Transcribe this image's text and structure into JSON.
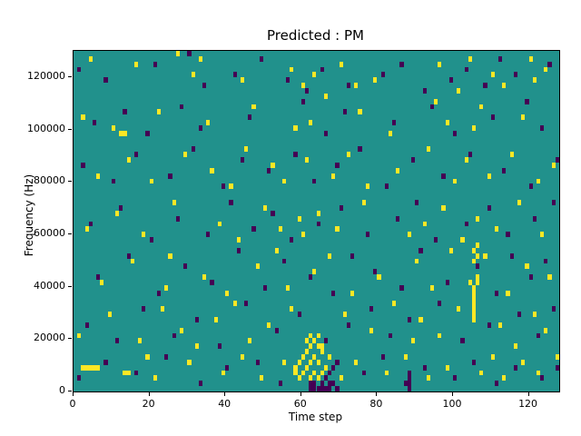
{
  "figure": {
    "title": "Predicted : PM",
    "xlabel": "Time step",
    "ylabel": "Frequency (Hz)"
  },
  "chart_data": {
    "type": "heatmap",
    "title": "Predicted : PM",
    "xlabel": "Time step",
    "ylabel": "Frequency (Hz)",
    "xlim": [
      0,
      128
    ],
    "ylim": [
      0,
      130000
    ],
    "x_ticks": [
      0,
      20,
      40,
      60,
      80,
      100,
      120
    ],
    "y_ticks": [
      0,
      20000,
      40000,
      60000,
      80000,
      100000,
      120000
    ],
    "grid": {
      "nx": 128,
      "ny": 64,
      "cell_height_hz": 2031
    },
    "colors": {
      "background": "#21918c",
      "high": "#fde725",
      "low": "#440154"
    },
    "legend_position": "none",
    "description": "Sparse spectrogram-style classification map: mostly mid (teal) cells with scattered high (yellow) and low (dark purple) cells. Cells given as [time_step, frequency_bin] with 64 bins spanning 0-130000 Hz.",
    "cells": {
      "high": [
        [
          4,
          62
        ],
        [
          16,
          61
        ],
        [
          27,
          63
        ],
        [
          31,
          59
        ],
        [
          33,
          62
        ],
        [
          44,
          58
        ],
        [
          57,
          60
        ],
        [
          60,
          57
        ],
        [
          63,
          59
        ],
        [
          66,
          55
        ],
        [
          70,
          61
        ],
        [
          74,
          57
        ],
        [
          79,
          58
        ],
        [
          96,
          61
        ],
        [
          101,
          56
        ],
        [
          104,
          62
        ],
        [
          110,
          59
        ],
        [
          113,
          57
        ],
        [
          120,
          62
        ],
        [
          121,
          58
        ],
        [
          124,
          60
        ],
        [
          2,
          51
        ],
        [
          10,
          49
        ],
        [
          12,
          48
        ],
        [
          13,
          48
        ],
        [
          22,
          52
        ],
        [
          35,
          50
        ],
        [
          47,
          53
        ],
        [
          58,
          49
        ],
        [
          62,
          50
        ],
        [
          75,
          52
        ],
        [
          83,
          48
        ],
        [
          95,
          54
        ],
        [
          98,
          50
        ],
        [
          105,
          49
        ],
        [
          107,
          53
        ],
        [
          118,
          51
        ],
        [
          6,
          40
        ],
        [
          14,
          43
        ],
        [
          20,
          39
        ],
        [
          29,
          44
        ],
        [
          36,
          41
        ],
        [
          41,
          38
        ],
        [
          45,
          45
        ],
        [
          52,
          42
        ],
        [
          55,
          39
        ],
        [
          61,
          43
        ],
        [
          68,
          40
        ],
        [
          72,
          44
        ],
        [
          77,
          38
        ],
        [
          85,
          41
        ],
        [
          93,
          45
        ],
        [
          100,
          39
        ],
        [
          103,
          43
        ],
        [
          109,
          40
        ],
        [
          115,
          44
        ],
        [
          122,
          39
        ],
        [
          126,
          42
        ],
        [
          3,
          30
        ],
        [
          11,
          33
        ],
        [
          18,
          29
        ],
        [
          26,
          35
        ],
        [
          38,
          31
        ],
        [
          43,
          28
        ],
        [
          50,
          34
        ],
        [
          54,
          30
        ],
        [
          59,
          32
        ],
        [
          60,
          29
        ],
        [
          64,
          33
        ],
        [
          69,
          30
        ],
        [
          76,
          35
        ],
        [
          88,
          29
        ],
        [
          92,
          31
        ],
        [
          97,
          34
        ],
        [
          102,
          28
        ],
        [
          106,
          32
        ],
        [
          111,
          30
        ],
        [
          117,
          35
        ],
        [
          123,
          29
        ],
        [
          7,
          20
        ],
        [
          15,
          24
        ],
        [
          24,
          19
        ],
        [
          25,
          25
        ],
        [
          34,
          21
        ],
        [
          40,
          18
        ],
        [
          48,
          23
        ],
        [
          53,
          26
        ],
        [
          56,
          19
        ],
        [
          63,
          22
        ],
        [
          67,
          25
        ],
        [
          73,
          18
        ],
        [
          80,
          21
        ],
        [
          90,
          24
        ],
        [
          94,
          19
        ],
        [
          99,
          26
        ],
        [
          104,
          20
        ],
        [
          108,
          25
        ],
        [
          114,
          18
        ],
        [
          119,
          23
        ],
        [
          125,
          21
        ],
        [
          105,
          13
        ],
        [
          105,
          14
        ],
        [
          105,
          15
        ],
        [
          105,
          16
        ],
        [
          105,
          17
        ],
        [
          105,
          18
        ],
        [
          105,
          19
        ],
        [
          106,
          20
        ],
        [
          106,
          21
        ],
        [
          105,
          24
        ],
        [
          106,
          25
        ],
        [
          105,
          26
        ],
        [
          106,
          27
        ],
        [
          1,
          10
        ],
        [
          9,
          14
        ],
        [
          17,
          9
        ],
        [
          23,
          15
        ],
        [
          28,
          11
        ],
        [
          32,
          8
        ],
        [
          37,
          13
        ],
        [
          42,
          16
        ],
        [
          46,
          9
        ],
        [
          51,
          12
        ],
        [
          57,
          15
        ],
        [
          62,
          10
        ],
        [
          65,
          8
        ],
        [
          71,
          14
        ],
        [
          78,
          11
        ],
        [
          84,
          16
        ],
        [
          89,
          9
        ],
        [
          91,
          13
        ],
        [
          96,
          10
        ],
        [
          101,
          15
        ],
        [
          112,
          12
        ],
        [
          116,
          8
        ],
        [
          121,
          14
        ],
        [
          124,
          11
        ],
        [
          2,
          4
        ],
        [
          3,
          4
        ],
        [
          4,
          4
        ],
        [
          5,
          4
        ],
        [
          6,
          4
        ],
        [
          13,
          3
        ],
        [
          14,
          3
        ],
        [
          19,
          6
        ],
        [
          21,
          2
        ],
        [
          30,
          5
        ],
        [
          39,
          3
        ],
        [
          44,
          6
        ],
        [
          49,
          2
        ],
        [
          55,
          5
        ],
        [
          58,
          3
        ],
        [
          58,
          4
        ],
        [
          59,
          2
        ],
        [
          59,
          5
        ],
        [
          60,
          3
        ],
        [
          60,
          6
        ],
        [
          61,
          4
        ],
        [
          61,
          7
        ],
        [
          61,
          9
        ],
        [
          62,
          2
        ],
        [
          62,
          5
        ],
        [
          62,
          8
        ],
        [
          63,
          3
        ],
        [
          63,
          6
        ],
        [
          63,
          9
        ],
        [
          64,
          2
        ],
        [
          64,
          5
        ],
        [
          64,
          8
        ],
        [
          64,
          10
        ],
        [
          65,
          3
        ],
        [
          65,
          7
        ],
        [
          66,
          4
        ],
        [
          66,
          9
        ],
        [
          67,
          6
        ],
        [
          70,
          2
        ],
        [
          74,
          5
        ],
        [
          82,
          3
        ],
        [
          87,
          6
        ],
        [
          93,
          2
        ],
        [
          98,
          4
        ],
        [
          107,
          3
        ],
        [
          110,
          6
        ],
        [
          113,
          2
        ],
        [
          118,
          5
        ],
        [
          122,
          3
        ],
        [
          127,
          6
        ]
      ],
      "low": [
        [
          1,
          60
        ],
        [
          8,
          58
        ],
        [
          21,
          61
        ],
        [
          30,
          63
        ],
        [
          34,
          57
        ],
        [
          42,
          59
        ],
        [
          49,
          62
        ],
        [
          56,
          58
        ],
        [
          61,
          56
        ],
        [
          65,
          60
        ],
        [
          72,
          57
        ],
        [
          81,
          59
        ],
        [
          86,
          61
        ],
        [
          92,
          56
        ],
        [
          99,
          58
        ],
        [
          103,
          60
        ],
        [
          108,
          57
        ],
        [
          112,
          62
        ],
        [
          116,
          59
        ],
        [
          125,
          61
        ],
        [
          5,
          50
        ],
        [
          13,
          52
        ],
        [
          19,
          48
        ],
        [
          28,
          53
        ],
        [
          33,
          49
        ],
        [
          46,
          51
        ],
        [
          60,
          54
        ],
        [
          66,
          48
        ],
        [
          71,
          52
        ],
        [
          84,
          50
        ],
        [
          94,
          53
        ],
        [
          100,
          48
        ],
        [
          110,
          51
        ],
        [
          119,
          54
        ],
        [
          123,
          49
        ],
        [
          2,
          42
        ],
        [
          10,
          39
        ],
        [
          16,
          44
        ],
        [
          25,
          40
        ],
        [
          31,
          45
        ],
        [
          39,
          38
        ],
        [
          44,
          43
        ],
        [
          51,
          41
        ],
        [
          58,
          44
        ],
        [
          63,
          39
        ],
        [
          69,
          42
        ],
        [
          75,
          45
        ],
        [
          82,
          38
        ],
        [
          89,
          43
        ],
        [
          97,
          40
        ],
        [
          104,
          44
        ],
        [
          113,
          41
        ],
        [
          120,
          38
        ],
        [
          127,
          43
        ],
        [
          4,
          31
        ],
        [
          12,
          34
        ],
        [
          20,
          28
        ],
        [
          27,
          32
        ],
        [
          35,
          29
        ],
        [
          41,
          35
        ],
        [
          47,
          30
        ],
        [
          52,
          33
        ],
        [
          57,
          28
        ],
        [
          64,
          31
        ],
        [
          70,
          34
        ],
        [
          77,
          29
        ],
        [
          85,
          32
        ],
        [
          90,
          35
        ],
        [
          95,
          28
        ],
        [
          103,
          31
        ],
        [
          109,
          34
        ],
        [
          114,
          29
        ],
        [
          121,
          32
        ],
        [
          126,
          35
        ],
        [
          6,
          21
        ],
        [
          14,
          25
        ],
        [
          22,
          18
        ],
        [
          29,
          23
        ],
        [
          36,
          20
        ],
        [
          43,
          26
        ],
        [
          50,
          19
        ],
        [
          55,
          24
        ],
        [
          62,
          21
        ],
        [
          68,
          18
        ],
        [
          73,
          25
        ],
        [
          79,
          22
        ],
        [
          86,
          19
        ],
        [
          91,
          26
        ],
        [
          98,
          20
        ],
        [
          106,
          23
        ],
        [
          111,
          18
        ],
        [
          115,
          25
        ],
        [
          120,
          21
        ],
        [
          124,
          24
        ],
        [
          3,
          12
        ],
        [
          11,
          9
        ],
        [
          18,
          15
        ],
        [
          26,
          10
        ],
        [
          32,
          13
        ],
        [
          38,
          8
        ],
        [
          45,
          16
        ],
        [
          53,
          11
        ],
        [
          59,
          14
        ],
        [
          66,
          9
        ],
        [
          72,
          12
        ],
        [
          78,
          15
        ],
        [
          83,
          10
        ],
        [
          88,
          13
        ],
        [
          96,
          16
        ],
        [
          102,
          9
        ],
        [
          109,
          12
        ],
        [
          117,
          14
        ],
        [
          122,
          10
        ],
        [
          126,
          15
        ],
        [
          62,
          0
        ],
        [
          62,
          1
        ],
        [
          63,
          0
        ],
        [
          63,
          1
        ],
        [
          64,
          0
        ],
        [
          65,
          0
        ],
        [
          65,
          1
        ],
        [
          66,
          0
        ],
        [
          66,
          2
        ],
        [
          67,
          0
        ],
        [
          67,
          1
        ],
        [
          67,
          3
        ],
        [
          68,
          1
        ],
        [
          68,
          4
        ],
        [
          69,
          0
        ],
        [
          69,
          5
        ],
        [
          88,
          0
        ],
        [
          88,
          1
        ],
        [
          88,
          2
        ],
        [
          88,
          3
        ],
        [
          1,
          2
        ],
        [
          8,
          5
        ],
        [
          16,
          3
        ],
        [
          24,
          6
        ],
        [
          33,
          1
        ],
        [
          40,
          4
        ],
        [
          48,
          5
        ],
        [
          54,
          1
        ],
        [
          76,
          3
        ],
        [
          81,
          6
        ],
        [
          87,
          1
        ],
        [
          92,
          4
        ],
        [
          100,
          2
        ],
        [
          105,
          5
        ],
        [
          111,
          1
        ],
        [
          116,
          4
        ],
        [
          123,
          2
        ],
        [
          127,
          4
        ]
      ]
    }
  }
}
